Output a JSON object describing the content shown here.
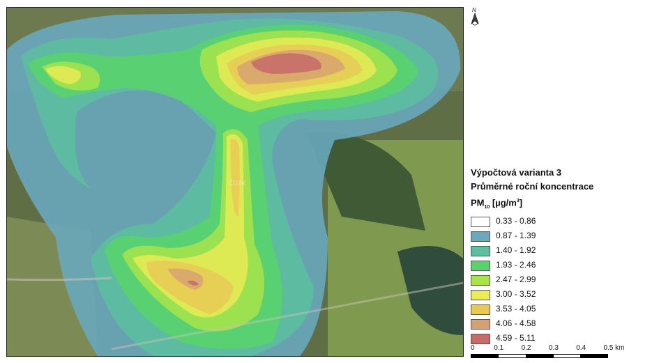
{
  "map": {
    "north_arrow_label": "N",
    "watermark": "ČÚZK",
    "palette": {
      "class1": "#ffffff",
      "class2": "#6aa8bf",
      "class3": "#5cbfa0",
      "class4": "#58d46a",
      "class5": "#a8e44a",
      "class6": "#ecec55",
      "class7": "#e9c955",
      "class8": "#d7a072",
      "class9": "#c76a6a"
    }
  },
  "legend": {
    "title": "Výpočtová varianta 3",
    "subtitle": "Průměrné roční koncentrace",
    "pollutant_main": "PM",
    "pollutant_sub": "10",
    "unit_open": " [µg/m",
    "unit_sup": "3",
    "unit_close": "]",
    "classes": [
      {
        "label": "0.33 - 0.86",
        "color": "#ffffff"
      },
      {
        "label": "0.87 - 1.39",
        "color": "#6aa8bf"
      },
      {
        "label": "1.40 - 1.92",
        "color": "#5cbfa0"
      },
      {
        "label": "1.93 - 2.46",
        "color": "#58d46a"
      },
      {
        "label": "2.47 - 2.99",
        "color": "#a8e44a"
      },
      {
        "label": "3.00 - 3.52",
        "color": "#ecec55"
      },
      {
        "label": "3.53 - 4.05",
        "color": "#e9c955"
      },
      {
        "label": "4.06 - 4.58",
        "color": "#d7a072"
      },
      {
        "label": "4.59 - 5.11",
        "color": "#c76a6a"
      }
    ]
  },
  "scalebar": {
    "ticks": [
      "0",
      "0.1",
      "0.2",
      "0.3",
      "0.4",
      "0.5 km"
    ]
  }
}
